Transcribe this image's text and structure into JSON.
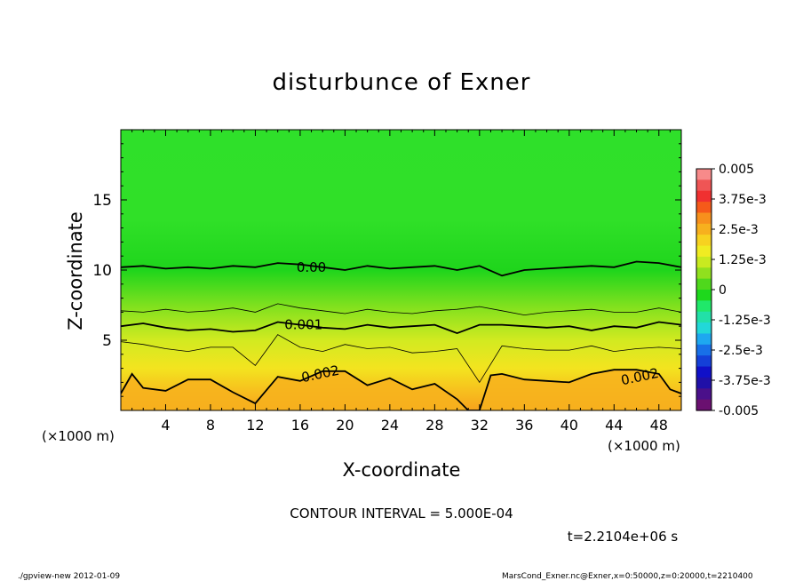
{
  "chart_data": {
    "type": "heatmap",
    "title": "disturbunce of Exner",
    "xlabel": "X-coordinate",
    "ylabel": "Z-coordinate",
    "x_unit_left": "(×1000 m)",
    "x_unit_right": "(×1000 m)",
    "xlim": [
      0,
      50
    ],
    "ylim": [
      0,
      20
    ],
    "x_ticks": [
      "4",
      "8",
      "12",
      "16",
      "20",
      "24",
      "28",
      "32",
      "36",
      "40",
      "44",
      "48"
    ],
    "y_ticks": [
      "5",
      "10",
      "15"
    ],
    "colorbar": {
      "labels": [
        "0.005",
        "3.75e-3",
        "2.5e-3",
        "1.25e-3",
        "0",
        "-1.25e-3",
        "-2.5e-3",
        "-3.75e-3",
        "-0.005"
      ],
      "colors": [
        "#f78a8a",
        "#ef5555",
        "#f03030",
        "#f55a1a",
        "#f7901c",
        "#f7b01e",
        "#f7d220",
        "#f0ec22",
        "#c8ea20",
        "#90e01e",
        "#4fd81c",
        "#1ed81c",
        "#20e86a",
        "#22e0a8",
        "#22d8d8",
        "#1ea8f0",
        "#1870e8",
        "#1440d8",
        "#1010c8",
        "#2010a8",
        "#4a108a",
        "#6a1070"
      ]
    },
    "contour_labels": [
      {
        "value": "0.00",
        "x": 17.0,
        "z": 10.2
      },
      {
        "value": "0.001",
        "x": 16.3,
        "z": 6.1
      },
      {
        "value": "0.002",
        "x": 17.8,
        "z": 2.6
      },
      {
        "value": "0.002",
        "x": 46.3,
        "z": 2.4
      }
    ],
    "annotations": {
      "contour_interval": "CONTOUR INTERVAL = 5.000E-04",
      "time": "t=2.2104e+06 s",
      "footer_left": "./gpview-new  2012-01-09",
      "footer_right": "MarsCond_Exner.nc@Exner,x=0:50000,z=0:20000,t=2210400"
    },
    "contours": {
      "c0": {
        "x": [
          0,
          2,
          4,
          6,
          8,
          10,
          12,
          14,
          16,
          18,
          20,
          22,
          24,
          26,
          28,
          30,
          32,
          34,
          36,
          38,
          40,
          42,
          44,
          46,
          48,
          50
        ],
        "z": [
          10.2,
          10.3,
          10.1,
          10.2,
          10.1,
          10.3,
          10.2,
          10.5,
          10.4,
          10.2,
          10.0,
          10.3,
          10.1,
          10.2,
          10.3,
          10.0,
          10.3,
          9.6,
          10.0,
          10.1,
          10.2,
          10.3,
          10.2,
          10.6,
          10.5,
          10.2
        ]
      },
      "c05": {
        "x": [
          0,
          2,
          4,
          6,
          8,
          10,
          12,
          14,
          16,
          18,
          20,
          22,
          24,
          26,
          28,
          30,
          32,
          34,
          36,
          38,
          40,
          42,
          44,
          46,
          48,
          50
        ],
        "z": [
          7.1,
          7.0,
          7.2,
          7.0,
          7.1,
          7.3,
          7.0,
          7.6,
          7.3,
          7.1,
          6.9,
          7.2,
          7.0,
          6.9,
          7.1,
          7.2,
          7.4,
          7.1,
          6.8,
          7.0,
          7.1,
          7.2,
          7.0,
          7.0,
          7.3,
          7.0
        ]
      },
      "c10": {
        "x": [
          0,
          2,
          4,
          6,
          8,
          10,
          12,
          14,
          16,
          18,
          20,
          22,
          24,
          26,
          28,
          30,
          32,
          34,
          36,
          38,
          40,
          42,
          44,
          46,
          48,
          50
        ],
        "z": [
          6.0,
          6.2,
          5.9,
          5.7,
          5.8,
          5.6,
          5.7,
          6.3,
          6.1,
          5.9,
          5.8,
          6.1,
          5.9,
          6.0,
          6.1,
          5.5,
          6.1,
          6.1,
          6.0,
          5.9,
          6.0,
          5.7,
          6.0,
          5.9,
          6.3,
          6.1
        ]
      },
      "c15": {
        "x": [
          0,
          2,
          4,
          6,
          8,
          10,
          12,
          14,
          16,
          18,
          20,
          22,
          24,
          26,
          28,
          30,
          32,
          34,
          36,
          38,
          40,
          42,
          44,
          46,
          48,
          50
        ],
        "z": [
          4.9,
          4.7,
          4.4,
          4.2,
          4.5,
          4.5,
          3.2,
          5.4,
          4.5,
          4.2,
          4.7,
          4.4,
          4.5,
          4.1,
          4.2,
          4.4,
          2.0,
          4.6,
          4.4,
          4.3,
          4.3,
          4.6,
          4.2,
          4.4,
          4.5,
          4.4
        ]
      },
      "c20": {
        "x": [
          0,
          1,
          2,
          4,
          6,
          8,
          10,
          12,
          14,
          16,
          18,
          20,
          22,
          24,
          26,
          28,
          30,
          31,
          32,
          33,
          34,
          36,
          38,
          40,
          42,
          44,
          46,
          48,
          49,
          50
        ],
        "z": [
          1.2,
          2.6,
          1.6,
          1.4,
          2.2,
          2.2,
          1.3,
          0.5,
          2.4,
          2.1,
          2.8,
          2.8,
          1.8,
          2.3,
          1.5,
          1.9,
          0.8,
          0.0,
          0.0,
          2.5,
          2.6,
          2.2,
          2.1,
          2.0,
          2.6,
          2.9,
          2.9,
          2.6,
          1.5,
          1.2
        ]
      }
    }
  }
}
